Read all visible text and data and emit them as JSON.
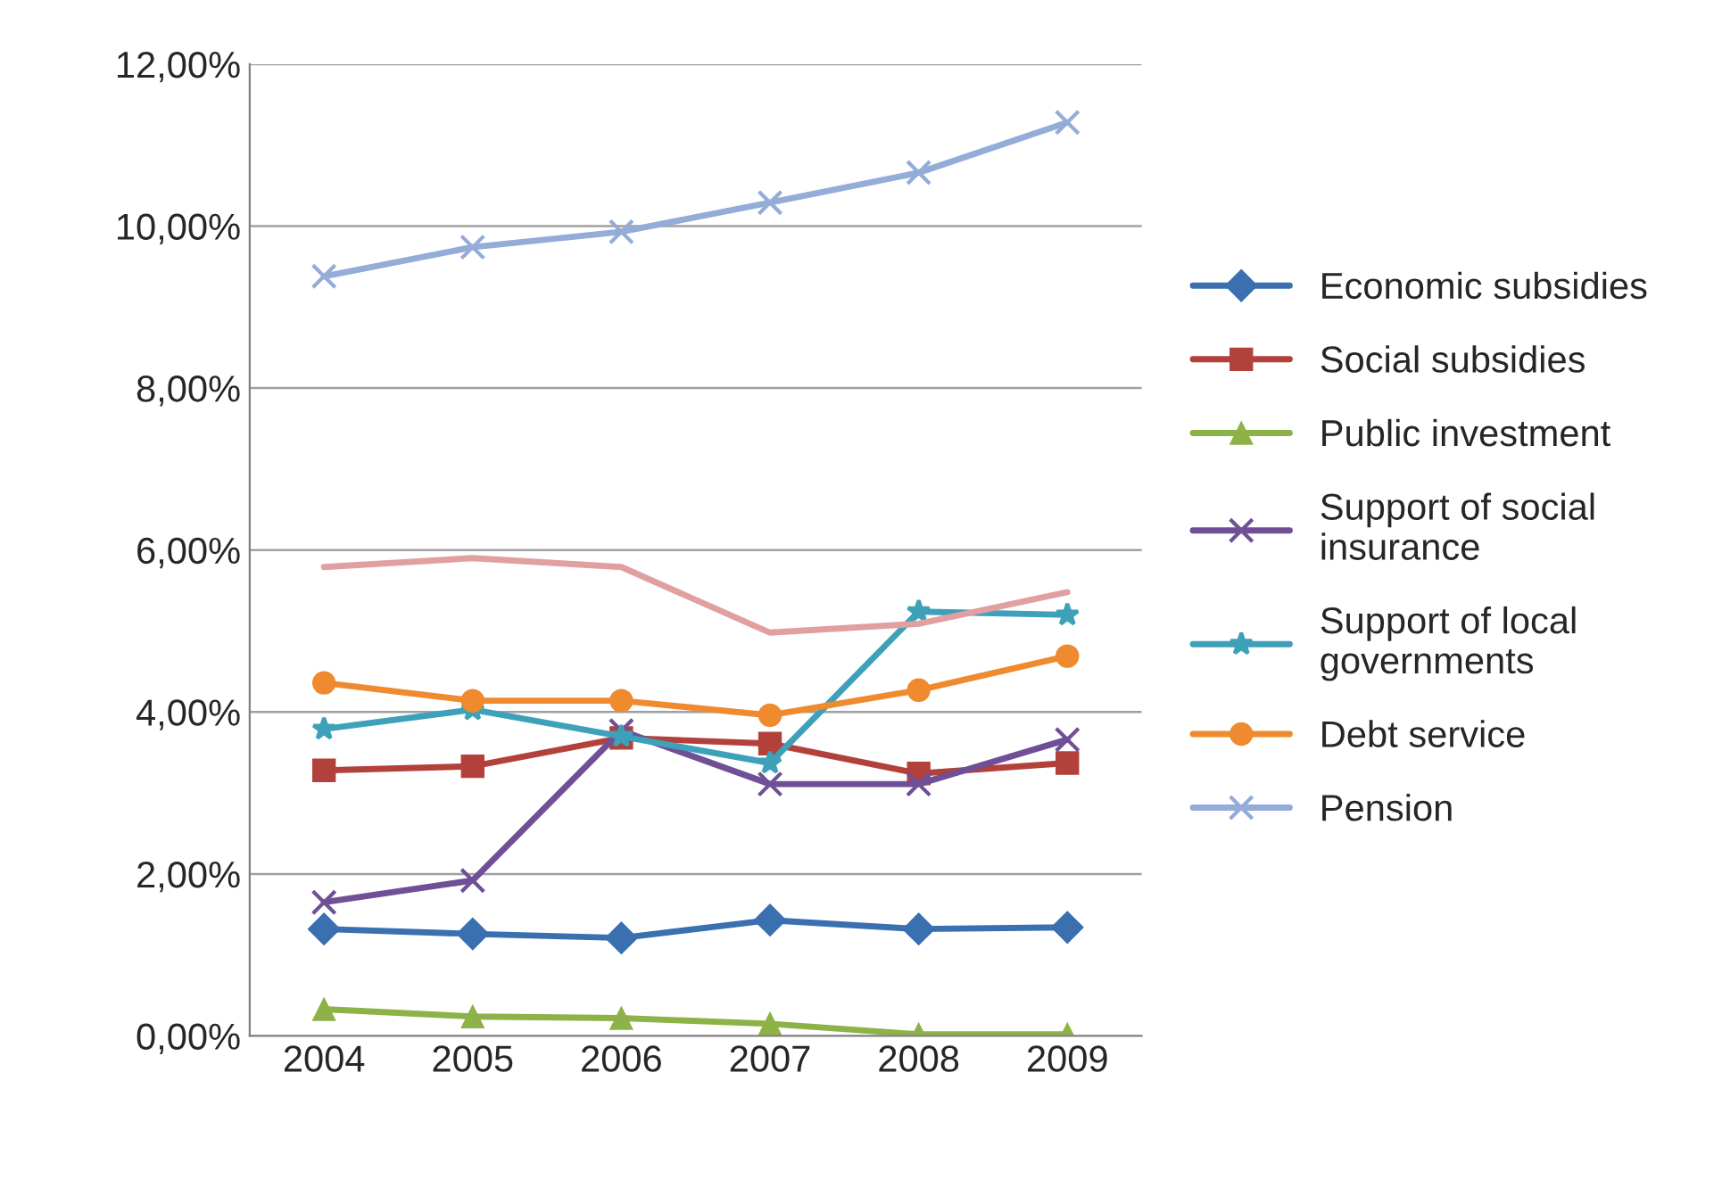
{
  "chart_data": {
    "type": "line",
    "categories": [
      "2004",
      "2005",
      "2006",
      "2007",
      "2008",
      "2009"
    ],
    "series": [
      {
        "name": "Economic subsidies",
        "color": "#3a6fb0",
        "marker": "diamond",
        "values": [
          1.32,
          1.26,
          1.21,
          1.43,
          1.32,
          1.34
        ]
      },
      {
        "name": "Social subsidies",
        "color": "#b2413c",
        "marker": "square",
        "values": [
          3.28,
          3.33,
          3.68,
          3.61,
          3.24,
          3.37
        ]
      },
      {
        "name": "Public investment",
        "color": "#8db248",
        "marker": "triangle",
        "values": [
          0.33,
          0.24,
          0.22,
          0.15,
          0.02,
          0.02
        ]
      },
      {
        "name": "Support of social\ninsurance",
        "color": "#6f4f96",
        "marker": "cross",
        "values": [
          1.65,
          1.92,
          3.77,
          3.11,
          3.11,
          3.66
        ]
      },
      {
        "name": "Support of local\ngovernments",
        "color": "#3ea1b9",
        "marker": "star",
        "values": [
          3.79,
          4.03,
          3.7,
          3.37,
          5.24,
          5.2
        ]
      },
      {
        "name": "Debt service",
        "color": "#ef8a2f",
        "marker": "circle",
        "values": [
          4.36,
          4.14,
          4.14,
          3.96,
          4.27,
          4.69
        ]
      },
      {
        "name": "Pension",
        "color": "#93acd8",
        "marker": "cross",
        "values": [
          9.38,
          9.74,
          9.93,
          10.29,
          10.66,
          11.28
        ]
      },
      {
        "color": "#e0a0a0",
        "marker": "none",
        "values": [
          5.79,
          5.9,
          5.79,
          4.98,
          5.09,
          5.48
        ]
      }
    ],
    "ylim": [
      0,
      12
    ],
    "yticks": [
      {
        "value": 0,
        "label": "0,00%"
      },
      {
        "value": 2,
        "label": "2,00%"
      },
      {
        "value": 4,
        "label": "4,00%"
      },
      {
        "value": 6,
        "label": "6,00%"
      },
      {
        "value": 8,
        "label": "8,00%"
      },
      {
        "value": 10,
        "label": "10,00%"
      },
      {
        "value": 12,
        "label": "12,00%"
      }
    ],
    "grid": "y",
    "legend": "right"
  }
}
